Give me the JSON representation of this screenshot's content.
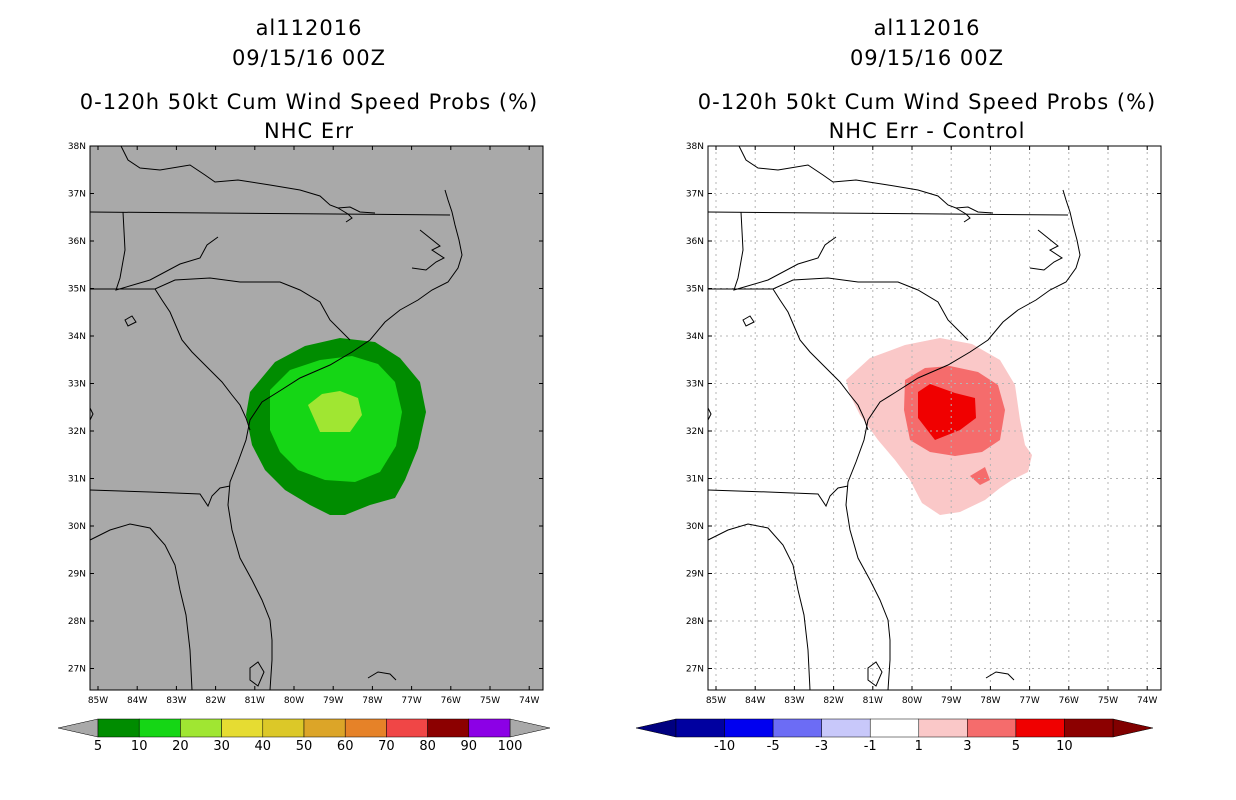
{
  "left": {
    "storm_id": "al112016",
    "date": "09/15/16 00Z",
    "title": "0-120h 50kt Cum Wind Speed Probs (%)",
    "subtitle": "NHC Err",
    "background": "#a9a9a9",
    "colorbar": {
      "colors": [
        "#008c00",
        "#15d615",
        "#a0e632",
        "#e6dc32",
        "#dcc828",
        "#dca528",
        "#e68228",
        "#f04646",
        "#8c0000",
        "#8c00e6"
      ],
      "labels": [
        "5",
        "10",
        "20",
        "30",
        "40",
        "50",
        "60",
        "70",
        "80",
        "90",
        "100"
      ]
    }
  },
  "right": {
    "storm_id": "al112016",
    "date": "09/15/16 00Z",
    "title": "0-120h 50kt Cum Wind Speed Probs (%)",
    "subtitle": "NHC Err - Control",
    "background": "#ffffff",
    "colorbar": {
      "colors": [
        "#0000a0",
        "#0000f0",
        "#6c6cf5",
        "#c8c8fa",
        "#ffffff",
        "#fac8c8",
        "#f56c6c",
        "#f00000",
        "#8c0000"
      ],
      "labels": [
        "-10",
        "-5",
        "-3",
        "-1",
        "1",
        "3",
        "5",
        "10"
      ]
    }
  },
  "axes": {
    "lat_labels": [
      "38N",
      "37N",
      "36N",
      "35N",
      "34N",
      "33N",
      "32N",
      "31N",
      "30N",
      "29N",
      "28N",
      "27N"
    ],
    "lon_labels": [
      "85W",
      "84W",
      "83W",
      "82W",
      "81W",
      "80W",
      "79W",
      "78W",
      "77W",
      "76W",
      "75W",
      "74W"
    ]
  }
}
